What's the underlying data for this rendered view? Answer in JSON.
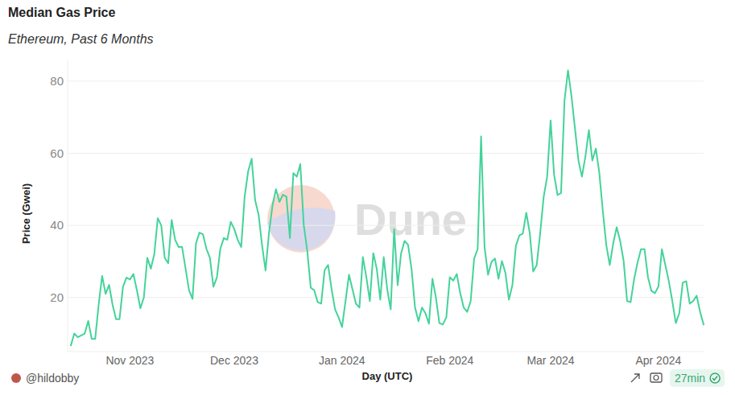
{
  "chart_data": {
    "type": "line",
    "title": "Median Gas Price",
    "subtitle": "Ethereum, Past 6 Months",
    "x_label": "Day (UTC)",
    "y_label": "Price (Gwei)",
    "annotations": [
      "Dune",
      "@hildobby",
      "27min"
    ],
    "color": "#44d39a",
    "grid": true,
    "ylim": [
      5,
      86
    ],
    "yticks": [
      20,
      40,
      60,
      80
    ],
    "categories": [
      null,
      null,
      null,
      null,
      null,
      null,
      null,
      null,
      null,
      null,
      null,
      null,
      null,
      null,
      null,
      null,
      null,
      "Nov 2023",
      null,
      null,
      null,
      null,
      null,
      null,
      null,
      null,
      null,
      null,
      null,
      null,
      null,
      null,
      null,
      null,
      null,
      null,
      null,
      null,
      null,
      null,
      null,
      null,
      null,
      null,
      null,
      null,
      null,
      "Dec 2023",
      null,
      null,
      null,
      null,
      null,
      null,
      null,
      null,
      null,
      null,
      null,
      null,
      null,
      null,
      null,
      null,
      null,
      null,
      null,
      null,
      null,
      null,
      null,
      null,
      null,
      null,
      null,
      null,
      null,
      null,
      "Jan 2024",
      null,
      null,
      null,
      null,
      null,
      null,
      null,
      null,
      null,
      null,
      null,
      null,
      null,
      null,
      null,
      null,
      null,
      null,
      null,
      null,
      null,
      null,
      null,
      null,
      null,
      null,
      null,
      null,
      null,
      null,
      "Feb 2024",
      null,
      null,
      null,
      null,
      null,
      null,
      null,
      null,
      null,
      null,
      null,
      null,
      null,
      null,
      null,
      null,
      null,
      null,
      null,
      null,
      null,
      null,
      null,
      null,
      null,
      null,
      null,
      null,
      "Mar 2024",
      null,
      null,
      null,
      null,
      null,
      null,
      null,
      null,
      null,
      null,
      null,
      null,
      null,
      null,
      null,
      null,
      null,
      null,
      null,
      null,
      null,
      null,
      null,
      null,
      null,
      null,
      null,
      null,
      null,
      null,
      "Apr 2024",
      null,
      null,
      null,
      null,
      null,
      null,
      null,
      null,
      null,
      null,
      null,
      null,
      null
    ],
    "values": [
      6.7,
      10,
      9,
      9.5,
      10,
      13.5,
      8.5,
      8.5,
      18,
      26,
      21,
      23.5,
      18,
      14,
      14,
      23,
      25.5,
      25,
      26.5,
      22,
      17,
      20,
      31,
      28,
      32,
      42,
      40,
      31,
      29.5,
      41.5,
      36,
      34,
      34,
      28,
      22,
      19.6,
      35,
      38,
      37.5,
      33.5,
      31,
      23,
      25.5,
      33.5,
      36.5,
      36,
      41,
      39,
      36,
      34,
      48,
      55,
      58.5,
      47,
      43,
      34.5,
      27.5,
      38,
      45.5,
      50,
      46.5,
      48.5,
      48,
      36.5,
      54.5,
      53.5,
      57,
      40,
      33,
      22.7,
      22,
      18.7,
      18.3,
      27.6,
      29,
      22.3,
      16.7,
      14.5,
      11.8,
      19,
      26.3,
      22.3,
      18.3,
      17.2,
      31.2,
      25.6,
      19,
      32.3,
      27.9,
      19.4,
      31.2,
      22.3,
      16.7,
      39,
      23.4,
      32.3,
      35.7,
      34.6,
      27.9,
      17.2,
      13.4,
      17.2,
      15.6,
      12.7,
      25.2,
      20,
      12.9,
      12.5,
      14.5,
      25.6,
      24.7,
      26.5,
      21.2,
      17.2,
      16,
      19,
      30.8,
      33.4,
      64.7,
      34,
      26.3,
      29.9,
      30.8,
      25.2,
      30.1,
      26.8,
      19.4,
      23.4,
      34.3,
      37.2,
      37.7,
      43.5,
      37.9,
      27.2,
      29,
      37.9,
      47.9,
      53.5,
      69.1,
      54,
      48.4,
      49,
      74.7,
      83,
      75.8,
      66.9,
      58,
      53.5,
      59.1,
      66.4,
      58,
      61.3,
      54.6,
      44.1,
      34.6,
      29,
      35,
      39.5,
      35.7,
      30.1,
      19,
      18.7,
      25,
      29.7,
      33.4,
      33.4,
      25.6,
      21.8,
      21.2,
      23,
      33.4,
      29,
      24.5,
      19,
      12.9,
      15.6,
      24.1,
      24.5,
      18.3,
      19,
      20.5,
      16,
      12.5
    ]
  }
}
